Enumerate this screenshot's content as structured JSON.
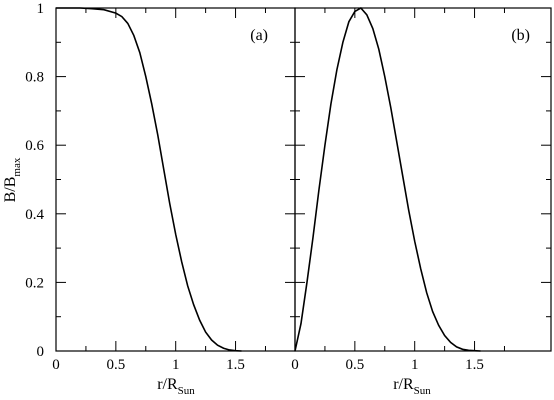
{
  "chart_data": [
    {
      "type": "line",
      "panel_label": "(a)",
      "xlim": [
        0,
        2
      ],
      "ylim": [
        0,
        1
      ],
      "x_ticks": [
        "0",
        "0.5",
        "1",
        "1.5"
      ],
      "y_ticks": [
        "0",
        "0.2",
        "0.4",
        "0.6",
        "0.8",
        "1"
      ],
      "xlabel": "r/R",
      "xlabel_sub": "Sun",
      "ylabel": "B/B",
      "ylabel_sub": "max",
      "grid": false,
      "series": [
        {
          "x": [
            0,
            0.1,
            0.2,
            0.3,
            0.4,
            0.5,
            0.55,
            0.6,
            0.65,
            0.7,
            0.75,
            0.8,
            0.85,
            0.9,
            0.95,
            1.0,
            1.05,
            1.1,
            1.15,
            1.2,
            1.25,
            1.3,
            1.35,
            1.4,
            1.45,
            1.5,
            1.55
          ],
          "y": [
            1.0,
            1.0,
            1.0,
            0.998,
            0.995,
            0.985,
            0.975,
            0.955,
            0.92,
            0.87,
            0.8,
            0.72,
            0.63,
            0.53,
            0.43,
            0.34,
            0.26,
            0.19,
            0.135,
            0.09,
            0.055,
            0.032,
            0.017,
            0.008,
            0.003,
            0.001,
            0.0
          ]
        }
      ]
    },
    {
      "type": "line",
      "panel_label": "(b)",
      "xlim": [
        0,
        2
      ],
      "ylim": [
        0,
        1
      ],
      "x_ticks": [
        "0",
        "0.5",
        "1",
        "1.5"
      ],
      "y_ticks": [
        "0",
        "0.2",
        "0.4",
        "0.6",
        "0.8",
        "1"
      ],
      "xlabel": "r/R",
      "xlabel_sub": "Sun",
      "grid": false,
      "series": [
        {
          "x": [
            0,
            0.05,
            0.1,
            0.15,
            0.2,
            0.25,
            0.3,
            0.35,
            0.4,
            0.45,
            0.5,
            0.55,
            0.6,
            0.65,
            0.7,
            0.75,
            0.8,
            0.85,
            0.9,
            0.95,
            1.0,
            1.05,
            1.1,
            1.15,
            1.2,
            1.25,
            1.3,
            1.35,
            1.4,
            1.45,
            1.5,
            1.55
          ],
          "y": [
            0.0,
            0.08,
            0.2,
            0.33,
            0.47,
            0.6,
            0.72,
            0.82,
            0.9,
            0.96,
            0.99,
            1.0,
            0.98,
            0.94,
            0.88,
            0.8,
            0.71,
            0.61,
            0.51,
            0.41,
            0.32,
            0.24,
            0.17,
            0.115,
            0.075,
            0.045,
            0.025,
            0.012,
            0.005,
            0.002,
            0.001,
            0.0
          ]
        }
      ]
    }
  ]
}
